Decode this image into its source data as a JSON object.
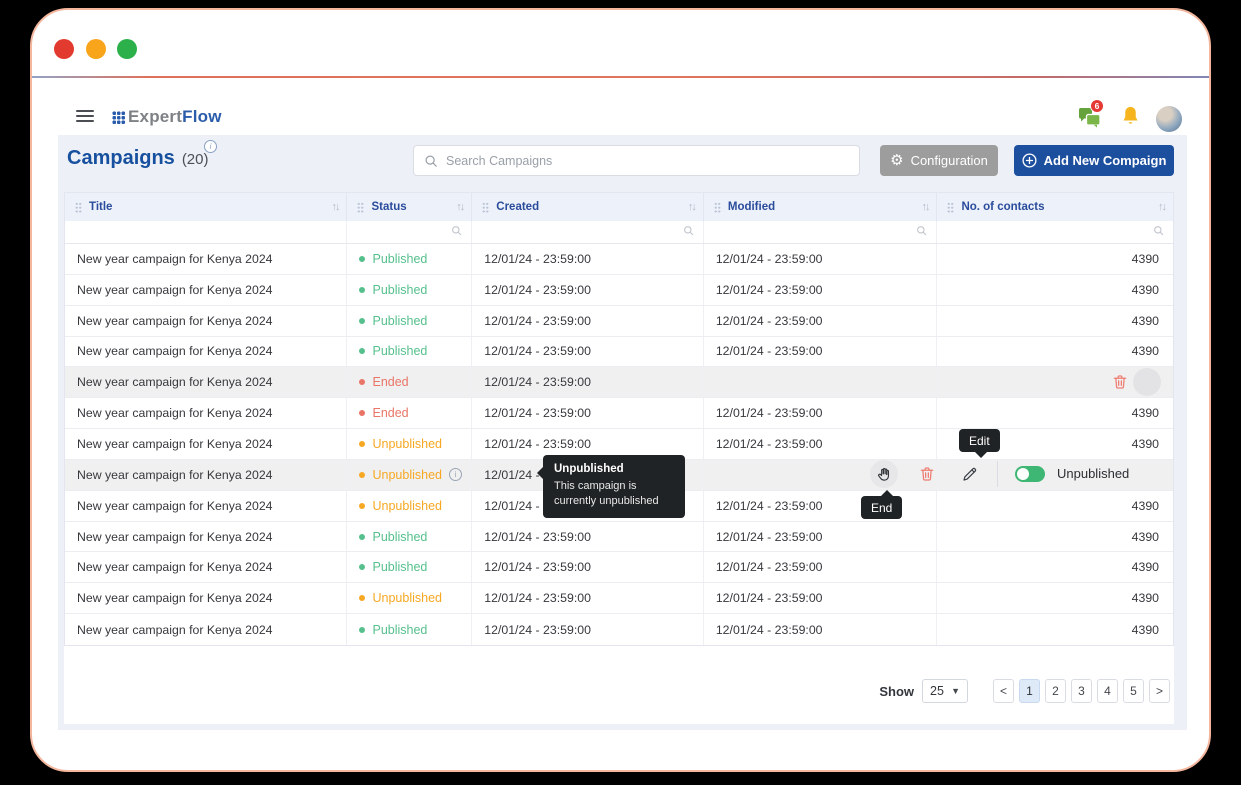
{
  "chrome": {
    "traffic_lights": [
      "close",
      "minimize",
      "maximize"
    ]
  },
  "navbar": {
    "logo_prefix": "Expert",
    "logo_suffix": "Flow",
    "chat_badge": "6"
  },
  "page": {
    "title": "Campaigns",
    "count": "(20)",
    "search_placeholder": "Search Campaigns",
    "configuration_label": "Configuration",
    "add_new_label": "Add New Compaign"
  },
  "table": {
    "columns": [
      "Title",
      "Status",
      "Created",
      "Modified",
      "No. of contacts"
    ],
    "rows": [
      {
        "title": "New year campaign for Kenya 2024",
        "status": "Published",
        "created": "12/01/24 - 23:59:00",
        "modified": "12/01/24 - 23:59:00",
        "contacts": "4390",
        "state": "normal"
      },
      {
        "title": "New year campaign for Kenya 2024",
        "status": "Published",
        "created": "12/01/24 - 23:59:00",
        "modified": "12/01/24 - 23:59:00",
        "contacts": "4390",
        "state": "normal"
      },
      {
        "title": "New year campaign for Kenya 2024",
        "status": "Published",
        "created": "12/01/24 - 23:59:00",
        "modified": "12/01/24 - 23:59:00",
        "contacts": "4390",
        "state": "normal"
      },
      {
        "title": "New year campaign for Kenya 2024",
        "status": "Published",
        "created": "12/01/24 - 23:59:00",
        "modified": "12/01/24 - 23:59:00",
        "contacts": "4390",
        "state": "normal"
      },
      {
        "title": "New year campaign for Kenya 2024",
        "status": "Ended",
        "created": "12/01/24 - 23:59:00",
        "modified": "",
        "contacts": "",
        "state": "highlight"
      },
      {
        "title": "New year campaign for Kenya 2024",
        "status": "Ended",
        "created": "12/01/24 - 23:59:00",
        "modified": "12/01/24 - 23:59:00",
        "contacts": "4390",
        "state": "normal"
      },
      {
        "title": "New year campaign for Kenya 2024",
        "status": "Unpublished",
        "created": "12/01/24 - 23:59:00",
        "modified": "12/01/24 - 23:59:00",
        "contacts": "4390",
        "state": "normal"
      },
      {
        "title": "New year campaign for Kenya 2024",
        "status": "Unpublished",
        "created": "12/01/24 - 23:59:00",
        "modified": "",
        "contacts": "",
        "state": "hover"
      },
      {
        "title": "New year campaign for Kenya 2024",
        "status": "Unpublished",
        "created": "12/01/24 - 23:59:00",
        "modified": "12/01/24 - 23:59:00",
        "contacts": "4390",
        "state": "normal"
      },
      {
        "title": "New year campaign for Kenya 2024",
        "status": "Published",
        "created": "12/01/24 - 23:59:00",
        "modified": "12/01/24 - 23:59:00",
        "contacts": "4390",
        "state": "normal"
      },
      {
        "title": "New year campaign for Kenya 2024",
        "status": "Published",
        "created": "12/01/24 - 23:59:00",
        "modified": "12/01/24 - 23:59:00",
        "contacts": "4390",
        "state": "normal"
      },
      {
        "title": "New year campaign for Kenya 2024",
        "status": "Unpublished",
        "created": "12/01/24 - 23:59:00",
        "modified": "12/01/24 - 23:59:00",
        "contacts": "4390",
        "state": "normal"
      },
      {
        "title": "New year campaign for Kenya 2024",
        "status": "Published",
        "created": "12/01/24 - 23:59:00",
        "modified": "12/01/24 - 23:59:00",
        "contacts": "4390",
        "state": "normal"
      }
    ]
  },
  "status_colors": {
    "Published": "#56c08d",
    "Ended": "#e97566",
    "Unpublished": "#f7a823"
  },
  "tooltips": {
    "edit": "Edit",
    "end": "End",
    "status_title": "Unpublished",
    "status_body": "This campaign is currently unpublished"
  },
  "row_actions": {
    "toggle_label": "Unpublished"
  },
  "pagination": {
    "show_label": "Show",
    "page_size": "25",
    "prev": "<",
    "next": ">",
    "pages": [
      "1",
      "2",
      "3",
      "4",
      "5"
    ],
    "active_page": "1"
  },
  "colors": {
    "accent_blue": "#1d4f9f",
    "badge_red": "#e53935",
    "chat_green": "#6aa23c",
    "bell_amber": "#f6b51e",
    "trash_red": "#ee7d72",
    "toggle_green": "#3db773"
  }
}
